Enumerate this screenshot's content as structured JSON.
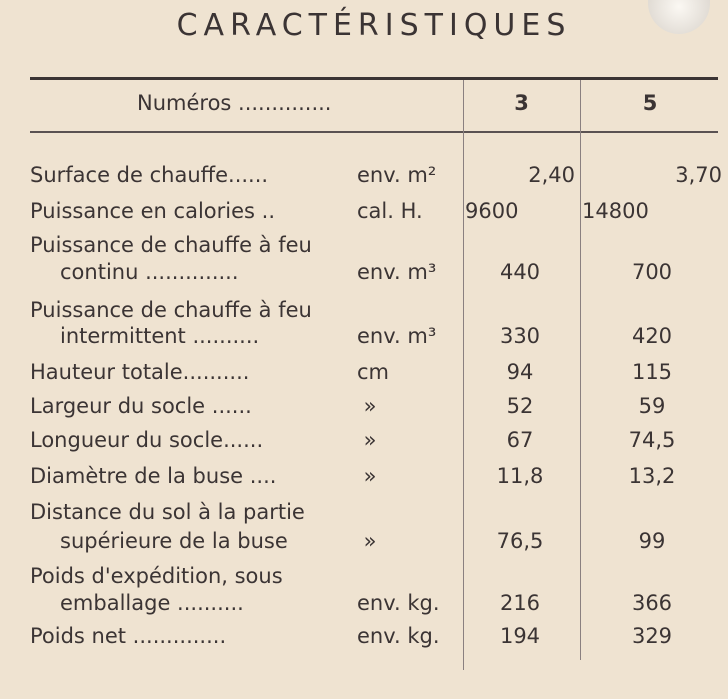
{
  "title": "CARACTÉRISTIQUES",
  "header": {
    "label": "Numéros ..............",
    "col1": "3",
    "col2": "5"
  },
  "rows": [
    {
      "label": "Surface de chauffe......",
      "label2": "",
      "unit": "env. m²",
      "v3": "2,40",
      "v5": "3,70"
    },
    {
      "label": "Puissance en calories ..",
      "label2": "",
      "unit": "cal. H.",
      "v3": "9600",
      "v5": "14800"
    },
    {
      "label": "Puissance de chauffe à feu",
      "label2": "continu ..............",
      "unit": "env. m³",
      "v3": "440",
      "v5": "700"
    },
    {
      "label": "Puissance de chauffe à feu",
      "label2": "intermittent ..........",
      "unit": "env. m³",
      "v3": "330",
      "v5": "420"
    },
    {
      "label": "Hauteur totale..........",
      "label2": "",
      "unit": "cm",
      "v3": "94",
      "v5": "115"
    },
    {
      "label": "Largeur du socle ......",
      "label2": "",
      "unit": " »",
      "v3": "52",
      "v5": "59"
    },
    {
      "label": "Longueur du socle......",
      "label2": "",
      "unit": " »",
      "v3": "67",
      "v5": "74,5"
    },
    {
      "label": "Diamètre de la buse ....",
      "label2": "",
      "unit": " »",
      "v3": "11,8",
      "v5": "13,2"
    },
    {
      "label": "Distance du sol à la partie",
      "label2": "supérieure de la buse",
      "unit": " »",
      "v3": "76,5",
      "v5": "99"
    },
    {
      "label": "Poids d'expédition, sous",
      "label2": "emballage ..........",
      "unit": "env. kg.",
      "v3": "216",
      "v5": "366"
    },
    {
      "label": "Poids net ..............",
      "label2": "",
      "unit": "env. kg.",
      "v3": "194",
      "v5": "329"
    }
  ]
}
